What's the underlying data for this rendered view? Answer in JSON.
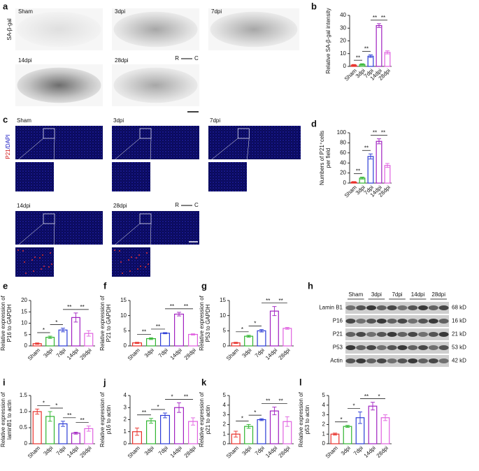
{
  "panel_a": {
    "label": "a",
    "stain": "SA-β-gal",
    "images": [
      "Sham",
      "3dpi",
      "7dpi",
      "14dpi",
      "28dpi"
    ],
    "orientation": [
      "R",
      "C"
    ]
  },
  "panel_c": {
    "label": "c",
    "stain": [
      "P21",
      "/DAPI"
    ],
    "images": [
      "Sham",
      "3dpi",
      "7dpi",
      "14dpi",
      "28dpi"
    ],
    "orientation": [
      "R",
      "C"
    ]
  },
  "panel_h": {
    "label": "h",
    "groups": [
      "Sham",
      "3dpi",
      "7dpi",
      "14dpi",
      "28dpi"
    ],
    "rows": [
      {
        "name": "Lamin B1",
        "size": "68 kD"
      },
      {
        "name": "P16",
        "size": "16 kD"
      },
      {
        "name": "P21",
        "size": "21 kD"
      },
      {
        "name": "P53",
        "size": "53 kD"
      },
      {
        "name": "Actin",
        "size": "42 kD"
      }
    ]
  },
  "chart_data": [
    {
      "type": "bar",
      "panel": "b",
      "ylabel": [
        "Relative SA-β-gal intensity"
      ],
      "categories": [
        "Sham",
        "3dpi",
        "7dpi",
        "14dpi",
        "28dpi"
      ],
      "colors": [
        "#e8302a",
        "#2fb52f",
        "#2b3bd6",
        "#a020c0",
        "#e060e0"
      ],
      "values": [
        1,
        1.5,
        8,
        32,
        11
      ],
      "errors": [
        0.5,
        0.6,
        1,
        1.5,
        1.2
      ],
      "ylim": [
        0,
        40
      ],
      "yticks": [
        0,
        10,
        20,
        30,
        40
      ],
      "significance": [
        {
          "text": "**",
          "between": [
            "Sham",
            "3dpi"
          ]
        },
        {
          "text": "**",
          "between": [
            "3dpi",
            "7dpi"
          ]
        },
        {
          "text": "**",
          "between": [
            "7dpi",
            "14dpi"
          ]
        },
        {
          "text": "**",
          "between": [
            "14dpi",
            "28dpi"
          ]
        }
      ]
    },
    {
      "type": "bar",
      "panel": "d",
      "ylabel": [
        "Numbers of P21⁺cells",
        "per field"
      ],
      "categories": [
        "Sham",
        "3dpi",
        "7dpi",
        "14dpi",
        "28dpi"
      ],
      "colors": [
        "#e8302a",
        "#2fb52f",
        "#2b3bd6",
        "#a020c0",
        "#e060e0"
      ],
      "values": [
        2,
        10,
        53,
        83,
        35
      ],
      "errors": [
        1,
        2,
        5,
        5,
        4
      ],
      "ylim": [
        0,
        100
      ],
      "yticks": [
        0,
        20,
        40,
        60,
        80,
        100
      ],
      "significance": [
        {
          "text": "**",
          "between": [
            "Sham",
            "3dpi"
          ]
        },
        {
          "text": "**",
          "between": [
            "3dpi",
            "7dpi"
          ]
        },
        {
          "text": "**",
          "between": [
            "7dpi",
            "14dpi"
          ]
        },
        {
          "text": "**",
          "between": [
            "14dpi",
            "28dpi"
          ]
        }
      ]
    },
    {
      "type": "bar",
      "panel": "e",
      "ylabel": [
        "Relative expression of",
        "P16 to GAPDH"
      ],
      "categories": [
        "Sham",
        "3dpi",
        "7dpi",
        "14dpi",
        "28dpi"
      ],
      "colors": [
        "#e8302a",
        "#2fb52f",
        "#2b3bd6",
        "#a020c0",
        "#e060e0"
      ],
      "values": [
        1,
        3.8,
        7,
        12.5,
        5.5
      ],
      "errors": [
        0.3,
        0.5,
        0.8,
        2,
        1.2
      ],
      "ylim": [
        0,
        20
      ],
      "yticks": [
        0,
        5,
        10,
        15,
        20
      ],
      "significance": [
        {
          "text": "*",
          "between": [
            "Sham",
            "3dpi"
          ]
        },
        {
          "text": "*",
          "between": [
            "3dpi",
            "7dpi"
          ]
        },
        {
          "text": "**",
          "between": [
            "7dpi",
            "14dpi"
          ]
        },
        {
          "text": "**",
          "between": [
            "14dpi",
            "28dpi"
          ]
        }
      ]
    },
    {
      "type": "bar",
      "panel": "f",
      "ylabel": [
        "Relative expression of",
        "P21 to GAPDH"
      ],
      "categories": [
        "Sham",
        "3dpi",
        "7dpi",
        "14dpi",
        "28dpi"
      ],
      "colors": [
        "#e8302a",
        "#2fb52f",
        "#2b3bd6",
        "#a020c0",
        "#e060e0"
      ],
      "values": [
        1,
        2.4,
        4.2,
        10.5,
        3.8
      ],
      "errors": [
        0.2,
        0.3,
        0.2,
        0.6,
        0.2
      ],
      "ylim": [
        0,
        15
      ],
      "yticks": [
        0,
        5,
        10,
        15
      ],
      "significance": [
        {
          "text": "**",
          "between": [
            "Sham",
            "3dpi"
          ]
        },
        {
          "text": "**",
          "between": [
            "3dpi",
            "7dpi"
          ]
        },
        {
          "text": "**",
          "between": [
            "7dpi",
            "14dpi"
          ]
        },
        {
          "text": "**",
          "between": [
            "14dpi",
            "28dpi"
          ]
        }
      ]
    },
    {
      "type": "bar",
      "panel": "g",
      "ylabel": [
        "Relative expression of",
        "P53 to GAPDH"
      ],
      "categories": [
        "Sham",
        "3dpi",
        "7dpi",
        "14dpi",
        "28dpi"
      ],
      "colors": [
        "#e8302a",
        "#2fb52f",
        "#2b3bd6",
        "#a020c0",
        "#e060e0"
      ],
      "values": [
        1,
        3.2,
        5,
        11.5,
        5.8
      ],
      "errors": [
        0.2,
        0.3,
        0.4,
        1.5,
        0.3
      ],
      "ylim": [
        0,
        15
      ],
      "yticks": [
        0,
        5,
        10,
        15
      ],
      "significance": [
        {
          "text": "*",
          "between": [
            "Sham",
            "3dpi"
          ]
        },
        {
          "text": "*",
          "between": [
            "3dpi",
            "7dpi"
          ]
        },
        {
          "text": "**",
          "between": [
            "7dpi",
            "14dpi"
          ]
        },
        {
          "text": "**",
          "between": [
            "14dpi",
            "28dpi"
          ]
        }
      ]
    },
    {
      "type": "bar",
      "panel": "i",
      "ylabel": [
        "Relative expression of",
        "laminB1 to actin"
      ],
      "categories": [
        "Sham",
        "3dpi",
        "7dpi",
        "14dpi",
        "28dpi"
      ],
      "colors": [
        "#e8302a",
        "#2fb52f",
        "#2b3bd6",
        "#a020c0",
        "#e060e0"
      ],
      "values": [
        1,
        0.85,
        0.62,
        0.33,
        0.47
      ],
      "errors": [
        0.08,
        0.15,
        0.08,
        0.03,
        0.08
      ],
      "ylim": [
        0,
        1.5
      ],
      "yticks": [
        0,
        0.5,
        {
          "value": 1,
          "label": "1.0"
        },
        1.5
      ],
      "significance": [
        {
          "text": "*",
          "between": [
            "Sham",
            "3dpi"
          ]
        },
        {
          "text": "*",
          "between": [
            "3dpi",
            "7dpi"
          ]
        },
        {
          "text": "**",
          "between": [
            "7dpi",
            "14dpi"
          ]
        },
        {
          "text": "**",
          "between": [
            "14dpi",
            "28dpi"
          ]
        }
      ]
    },
    {
      "type": "bar",
      "panel": "j",
      "ylabel": [
        "Relative expression of",
        "p16 to actin"
      ],
      "categories": [
        "Sham",
        "3dpi",
        "7dpi",
        "14dpi",
        "28dpi"
      ],
      "colors": [
        "#e8302a",
        "#2fb52f",
        "#2b3bd6",
        "#a020c0",
        "#e060e0"
      ],
      "values": [
        1,
        1.9,
        2.35,
        3,
        1.85
      ],
      "errors": [
        0.3,
        0.2,
        0.2,
        0.4,
        0.3
      ],
      "ylim": [
        0,
        4
      ],
      "yticks": [
        0,
        1,
        2,
        3,
        4
      ],
      "significance": [
        {
          "text": "**",
          "between": [
            "Sham",
            "3dpi"
          ]
        },
        {
          "text": "*",
          "between": [
            "3dpi",
            "7dpi"
          ]
        },
        {
          "text": "*",
          "between": [
            "7dpi",
            "14dpi"
          ]
        },
        {
          "text": "**",
          "between": [
            "14dpi",
            "28dpi"
          ]
        }
      ]
    },
    {
      "type": "bar",
      "panel": "k",
      "ylabel": [
        "Relative expression of",
        "p21 to actin"
      ],
      "categories": [
        "Sham",
        "3dpi",
        "7dpi",
        "14dpi",
        "28dpi"
      ],
      "colors": [
        "#e8302a",
        "#2fb52f",
        "#2b3bd6",
        "#a020c0",
        "#e060e0"
      ],
      "values": [
        1,
        1.8,
        2.5,
        3.4,
        2.3
      ],
      "errors": [
        0.3,
        0.2,
        0.1,
        0.4,
        0.5
      ],
      "ylim": [
        0,
        5
      ],
      "yticks": [
        0,
        1,
        2,
        3,
        4,
        5
      ],
      "significance": [
        {
          "text": "*",
          "between": [
            "Sham",
            "3dpi"
          ]
        },
        {
          "text": "*",
          "between": [
            "3dpi",
            "7dpi"
          ]
        },
        {
          "text": "**",
          "between": [
            "7dpi",
            "14dpi"
          ]
        },
        {
          "text": "**",
          "between": [
            "14dpi",
            "28dpi"
          ]
        }
      ]
    },
    {
      "type": "bar",
      "panel": "l",
      "ylabel": [
        "Relative expression of",
        "p53 to actin"
      ],
      "categories": [
        "Sham",
        "3dpi",
        "7dpi",
        "14dpi",
        "28dpi"
      ],
      "colors": [
        "#e8302a",
        "#2fb52f",
        "#2b3bd6",
        "#a020c0",
        "#e060e0"
      ],
      "values": [
        1,
        1.8,
        2.7,
        3.9,
        2.7
      ],
      "errors": [
        0.1,
        0.1,
        0.6,
        0.4,
        0.3
      ],
      "ylim": [
        0,
        5
      ],
      "yticks": [
        0,
        1,
        2,
        3,
        4,
        5
      ],
      "significance": [
        {
          "text": "*",
          "between": [
            "Sham",
            "3dpi"
          ]
        },
        {
          "text": "*",
          "between": [
            "3dpi",
            "7dpi"
          ]
        },
        {
          "text": "**",
          "between": [
            "7dpi",
            "14dpi"
          ]
        },
        {
          "text": "*",
          "between": [
            "14dpi",
            "28dpi"
          ]
        }
      ]
    }
  ]
}
